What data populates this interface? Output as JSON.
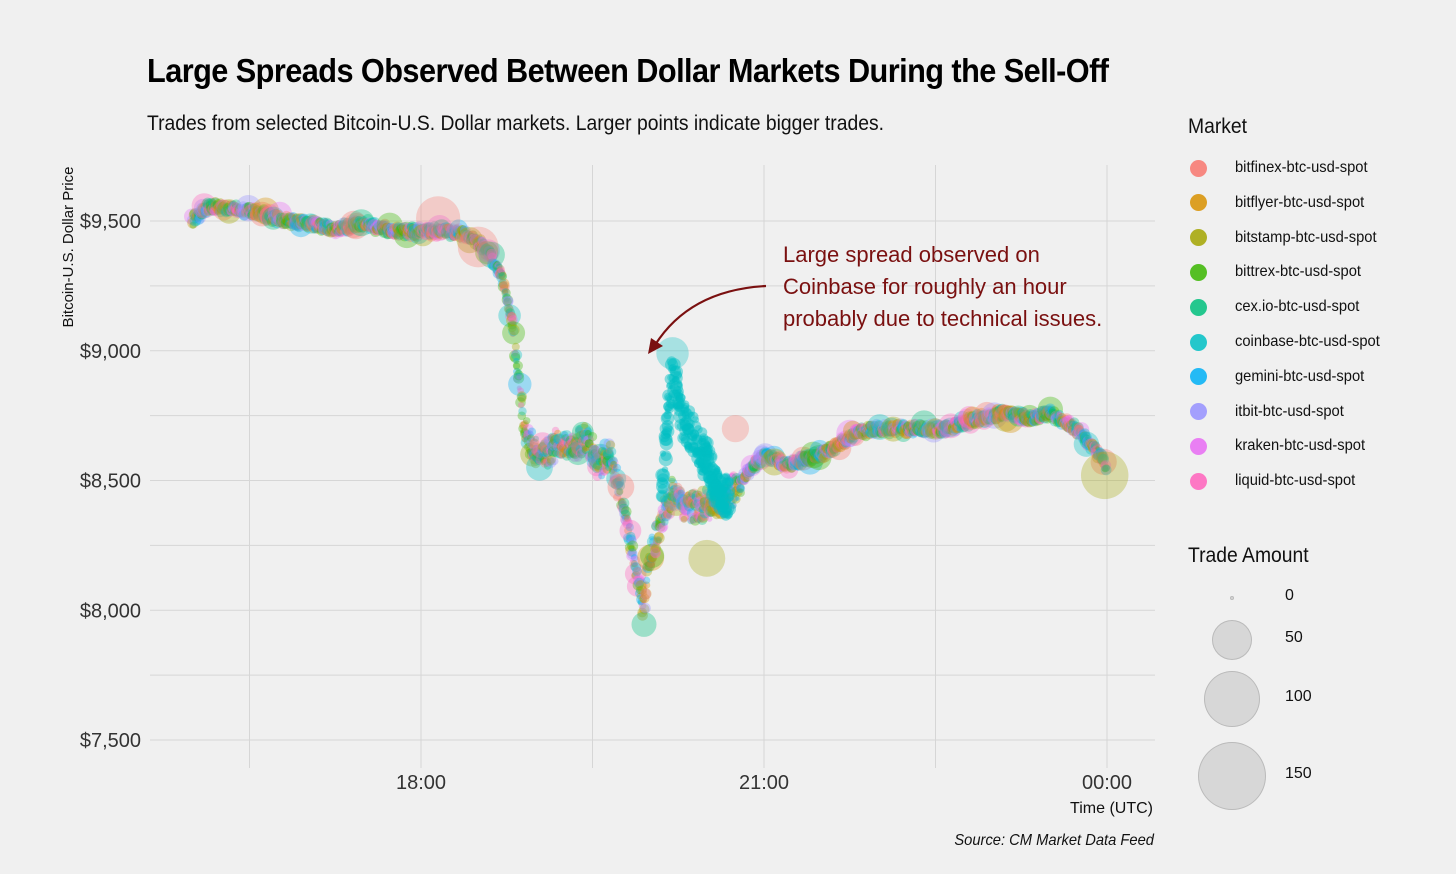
{
  "title": "Large Spreads Observed Between Dollar Markets During the Sell-Off",
  "subtitle": "Trades from selected Bitcoin-U.S. Dollar markets. Larger points indicate bigger trades.",
  "caption": "Source: CM Market Data Feed",
  "annotation": {
    "lines": [
      "Large spread observed on",
      "Coinbase for roughly an hour",
      "probably due to technical issues."
    ],
    "color": "#7a1010"
  },
  "legend": {
    "market_title": "Market",
    "size_title": "Trade Amount",
    "size_labels": [
      "0",
      "50",
      "100",
      "150"
    ]
  },
  "colors": {
    "bitfinex-btc-usd-spot": "#f8766d",
    "bitflyer-btc-usd-spot": "#d89000",
    "bitstamp-btc-usd-spot": "#a3a500",
    "bittrex-btc-usd-spot": "#39b600",
    "cex.io-btc-usd-spot": "#00bf7d",
    "coinbase-btc-usd-spot": "#00bfc4",
    "gemini-btc-usd-spot": "#00b0f6",
    "itbit-btc-usd-spot": "#9590ff",
    "kraken-btc-usd-spot": "#e76bf3",
    "liquid-btc-usd-spot": "#ff62bc"
  },
  "chart_data": {
    "type": "scatter",
    "title": "Large Spreads Observed Between Dollar Markets During the Sell-Off",
    "ylabel": "Bitcoin-U.S. Dollar Price",
    "xlabel": "Time (UTC)",
    "x_ticks": [
      "18:00",
      "21:00",
      "00:00"
    ],
    "y_ticks": [
      "$7,500",
      "$8,000",
      "$8,500",
      "$9,000",
      "$9,500"
    ],
    "ylim": [
      7400,
      9700
    ],
    "xlim_hours": [
      15.35,
      24.4
    ],
    "grid": true,
    "legend_position": "right",
    "series_names": [
      "bitfinex-btc-usd-spot",
      "bitflyer-btc-usd-spot",
      "bitstamp-btc-usd-spot",
      "bittrex-btc-usd-spot",
      "cex.io-btc-usd-spot",
      "coinbase-btc-usd-spot",
      "gemini-btc-usd-spot",
      "itbit-btc-usd-spot",
      "kraken-btc-usd-spot",
      "liquid-btc-usd-spot"
    ],
    "price_path": {
      "time_hours": [
        16.0,
        16.15,
        16.3,
        16.5,
        16.75,
        17.0,
        17.25,
        17.5,
        17.75,
        18.0,
        18.2,
        18.4,
        18.55,
        18.7,
        18.8,
        18.85,
        18.9,
        19.0,
        19.1,
        19.2,
        19.3,
        19.45,
        19.55,
        19.65,
        19.8,
        19.9,
        19.95,
        20.0,
        20.1,
        20.2,
        20.3,
        20.5,
        20.7,
        20.9,
        21.0,
        21.2,
        21.5,
        21.8,
        22.0,
        22.3,
        22.6,
        22.9,
        23.1,
        23.3,
        23.5,
        23.7,
        23.9,
        24.0
      ],
      "price": [
        9500,
        9560,
        9550,
        9540,
        9510,
        9490,
        9470,
        9490,
        9460,
        9460,
        9460,
        9450,
        9400,
        9300,
        9100,
        8900,
        8700,
        8600,
        8600,
        8640,
        8620,
        8660,
        8560,
        8600,
        8350,
        8100,
        8000,
        8200,
        8350,
        8450,
        8400,
        8400,
        8450,
        8550,
        8600,
        8560,
        8600,
        8680,
        8700,
        8700,
        8700,
        8740,
        8760,
        8740,
        8760,
        8710,
        8620,
        8550
      ]
    },
    "coinbase_spread": {
      "time_hours": [
        20.1,
        20.2,
        20.3,
        20.4,
        20.5,
        20.6,
        20.7
      ],
      "price": [
        8550,
        9000,
        8800,
        8750,
        8650,
        8550,
        8500
      ]
    },
    "notable_trades": [
      {
        "market": "bitfinex-btc-usd-spot",
        "time_hours": 18.15,
        "price": 9510,
        "amount": 60
      },
      {
        "market": "bitfinex-btc-usd-spot",
        "time_hours": 18.5,
        "price": 9400,
        "amount": 50
      },
      {
        "market": "bitstamp-btc-usd-spot",
        "time_hours": 20.5,
        "price": 8200,
        "amount": 40
      },
      {
        "market": "bitstamp-btc-usd-spot",
        "time_hours": 23.98,
        "price": 8520,
        "amount": 70
      },
      {
        "market": "coinbase-btc-usd-spot",
        "time_hours": 20.2,
        "price": 8990,
        "amount": 30
      },
      {
        "market": "bitfinex-btc-usd-spot",
        "time_hours": 20.75,
        "price": 8700,
        "amount": 20
      }
    ]
  }
}
